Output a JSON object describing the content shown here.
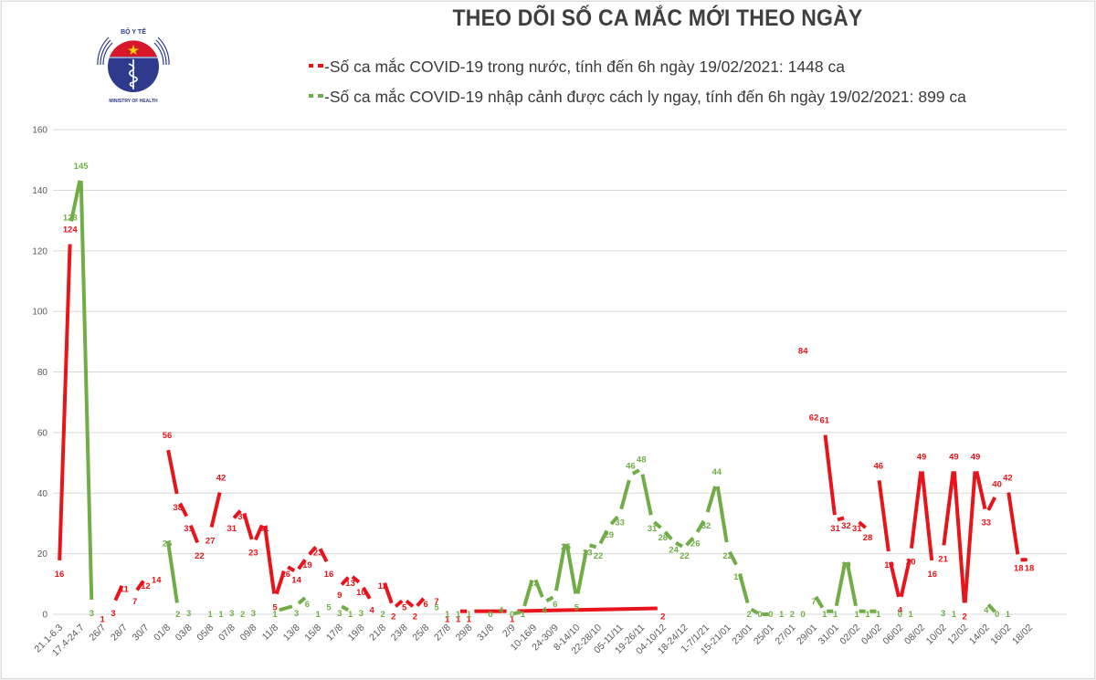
{
  "header": {
    "logo_top_text": "BỘ Y TẾ",
    "logo_bottom_text": "MINISTRY OF HEALTH",
    "title": "THEO DÕI SỐ CA MẮC MỚI THEO NGÀY"
  },
  "legend": {
    "domestic": "-Số ca mắc COVID-19 trong nước, tính đến 6h ngày 19/02/2021: 1448 ca",
    "imported": "-Số ca mắc COVID-19 nhập cảnh được cách ly ngay, tính đến 6h ngày 19/02/2021: 899 ca"
  },
  "colors": {
    "domestic": "#e8141b",
    "imported": "#70ad47",
    "grid": "#d9d9d9",
    "axis_text": "#595959"
  },
  "chart_data": {
    "type": "line",
    "title": "THEO DÕI SỐ CA MẮC MỚI THEO NGÀY",
    "xlabel": "",
    "ylabel": "",
    "ylim": [
      0,
      160
    ],
    "yticks": [
      0,
      20,
      40,
      60,
      80,
      100,
      120,
      140,
      160
    ],
    "grid": true,
    "legend_position": "top",
    "x_tick_labels": [
      "21.1-6.3",
      "17.4-24.7",
      "26/7",
      "28/7",
      "30/7",
      "01/8",
      "03/8",
      "05/8",
      "07/8",
      "09/8",
      "11/8",
      "13/8",
      "15/8",
      "17/8",
      "19/8",
      "21/8",
      "23/8",
      "25/8",
      "27/8",
      "29/8",
      "31/8",
      "2/9",
      "10-16/9",
      "24-30/9",
      "8-14/10",
      "22-28/10",
      "05-11/11",
      "19-26/11",
      "04-10/12",
      "18-24/12",
      "1-7/1/21",
      "15-21/01",
      "23/01",
      "25/01",
      "27/01",
      "29/01",
      "31/01",
      "02/02",
      "04/02",
      "06/02",
      "08/02",
      "10/02",
      "12/02",
      "14/02",
      "16/02",
      "18/02"
    ],
    "series": [
      {
        "name": "Số ca mắc COVID-19 trong nước, tính đến 6h ngày 19/02/2021: 1448 ca",
        "color": "#e8141b",
        "points": [
          [
            0,
            16
          ],
          [
            0.5,
            124
          ],
          [
            2,
            1
          ],
          [
            2.5,
            3
          ],
          [
            3,
            11
          ],
          [
            3.5,
            7
          ],
          [
            4,
            12
          ],
          [
            4.5,
            14
          ],
          [
            5,
            56
          ],
          [
            5.5,
            38
          ],
          [
            6,
            31
          ],
          [
            6.5,
            22
          ],
          [
            7,
            27
          ],
          [
            7.5,
            42
          ],
          [
            8,
            31
          ],
          [
            8.5,
            35
          ],
          [
            9,
            23
          ],
          [
            9.5,
            31
          ],
          [
            10,
            5
          ],
          [
            10.5,
            16
          ],
          [
            11,
            14
          ],
          [
            11.5,
            19
          ],
          [
            12,
            23
          ],
          [
            12.5,
            16
          ],
          [
            13,
            9
          ],
          [
            13.5,
            13
          ],
          [
            14,
            10
          ],
          [
            14.5,
            4
          ],
          [
            15,
            12
          ],
          [
            15.5,
            2
          ],
          [
            16,
            5
          ],
          [
            16.5,
            2
          ],
          [
            17,
            6
          ],
          [
            17.5,
            7
          ],
          [
            18,
            1
          ],
          [
            18.5,
            1
          ],
          [
            19,
            1
          ],
          [
            21,
            1
          ],
          [
            28,
            2
          ],
          [
            34.5,
            84
          ],
          [
            35,
            62
          ],
          [
            35.5,
            61
          ],
          [
            36,
            31
          ],
          [
            36.5,
            32
          ],
          [
            37,
            31
          ],
          [
            37.5,
            28
          ],
          [
            38,
            46
          ],
          [
            38.5,
            19
          ],
          [
            39,
            4
          ],
          [
            39.5,
            20
          ],
          [
            40,
            49
          ],
          [
            40.5,
            16
          ],
          [
            41,
            21
          ],
          [
            41.5,
            49
          ],
          [
            42,
            2
          ],
          [
            42.5,
            49
          ],
          [
            43,
            33
          ],
          [
            43.5,
            40
          ],
          [
            44,
            42
          ],
          [
            44.5,
            18
          ],
          [
            45,
            18
          ]
        ],
        "segments": [
          [
            0,
            1
          ],
          [
            3,
            4
          ],
          [
            5,
            6
          ],
          [
            8,
            9
          ],
          [
            9,
            10
          ],
          [
            10,
            11
          ],
          [
            12,
            13
          ],
          [
            14,
            15
          ],
          [
            15,
            16
          ],
          [
            16,
            17
          ],
          [
            17,
            18
          ],
          [
            18,
            19
          ],
          [
            19,
            20
          ],
          [
            20,
            21
          ],
          [
            21,
            22
          ],
          [
            22,
            23
          ],
          [
            24,
            25
          ],
          [
            25,
            26
          ],
          [
            26,
            27
          ],
          [
            28,
            29
          ],
          [
            29,
            30
          ],
          [
            30,
            31
          ],
          [
            31,
            32
          ],
          [
            35,
            36
          ],
          [
            36,
            37
          ],
          [
            37,
            38
          ],
          [
            41,
            42
          ],
          [
            42,
            43
          ],
          [
            44,
            45
          ],
          [
            46,
            47
          ],
          [
            47,
            48
          ],
          [
            48,
            49
          ],
          [
            49,
            50
          ],
          [
            50,
            51
          ],
          [
            52,
            53
          ],
          [
            53,
            54
          ],
          [
            54,
            55
          ],
          [
            55,
            56
          ],
          [
            56,
            57
          ],
          [
            58,
            59
          ],
          [
            59,
            60
          ],
          [
            61,
            62
          ]
        ]
      },
      {
        "name": "Số ca mắc COVID-19 nhập cảnh được cách ly ngay, tính đến 6h ngày 19/02/2021: 899 ca",
        "color": "#70ad47",
        "points": [
          [
            0.5,
            128
          ],
          [
            1,
            145
          ],
          [
            1.5,
            3
          ],
          [
            5,
            26
          ],
          [
            5.5,
            2
          ],
          [
            6,
            3
          ],
          [
            7,
            1
          ],
          [
            7.5,
            1
          ],
          [
            8,
            3
          ],
          [
            8.5,
            2
          ],
          [
            9,
            3
          ],
          [
            10,
            1
          ],
          [
            11,
            3
          ],
          [
            11.5,
            6
          ],
          [
            12,
            1
          ],
          [
            12.5,
            5
          ],
          [
            13,
            3
          ],
          [
            13.5,
            1
          ],
          [
            14,
            3
          ],
          [
            15,
            2
          ],
          [
            17.5,
            5
          ],
          [
            18,
            1
          ],
          [
            18.5,
            1
          ],
          [
            19,
            1
          ],
          [
            20,
            0
          ],
          [
            20.5,
            4
          ],
          [
            21,
            0
          ],
          [
            21.5,
            1
          ],
          [
            22,
            13
          ],
          [
            22.5,
            4
          ],
          [
            23,
            6
          ],
          [
            23.5,
            25
          ],
          [
            24,
            5
          ],
          [
            24.5,
            23
          ],
          [
            25,
            22
          ],
          [
            25.5,
            29
          ],
          [
            26,
            33
          ],
          [
            26.5,
            46
          ],
          [
            27,
            48
          ],
          [
            27.5,
            31
          ],
          [
            28,
            28
          ],
          [
            28.5,
            24
          ],
          [
            29,
            22
          ],
          [
            29.5,
            26
          ],
          [
            30,
            32
          ],
          [
            30.5,
            44
          ],
          [
            31,
            22
          ],
          [
            31.5,
            15
          ],
          [
            32,
            2
          ],
          [
            32.5,
            0
          ],
          [
            33,
            0
          ],
          [
            33.5,
            1
          ],
          [
            34,
            2
          ],
          [
            34.5,
            0
          ],
          [
            35,
            7
          ],
          [
            35.5,
            1
          ],
          [
            36,
            1
          ],
          [
            36.5,
            19
          ],
          [
            37,
            1
          ],
          [
            37.5,
            1
          ],
          [
            38,
            1
          ],
          [
            39,
            0
          ],
          [
            39.5,
            1
          ],
          [
            41,
            3
          ],
          [
            41.5,
            1
          ],
          [
            43,
            4
          ],
          [
            43.5,
            0
          ],
          [
            44,
            1
          ]
        ],
        "segments": [
          [
            0,
            1
          ],
          [
            1,
            2
          ],
          [
            3,
            4
          ],
          [
            11,
            12
          ],
          [
            12,
            13
          ],
          [
            16,
            17
          ],
          [
            26,
            27
          ],
          [
            27,
            28
          ],
          [
            28,
            29
          ],
          [
            29,
            30
          ],
          [
            30,
            31
          ],
          [
            31,
            32
          ],
          [
            32,
            33
          ],
          [
            33,
            34
          ],
          [
            34,
            35
          ],
          [
            35,
            36
          ],
          [
            36,
            37
          ],
          [
            37,
            38
          ],
          [
            38,
            39
          ],
          [
            39,
            40
          ],
          [
            40,
            41
          ],
          [
            41,
            42
          ],
          [
            42,
            43
          ],
          [
            43,
            44
          ],
          [
            44,
            45
          ],
          [
            45,
            46
          ],
          [
            46,
            47
          ],
          [
            47,
            48
          ],
          [
            48,
            49
          ],
          [
            49,
            50
          ],
          [
            54,
            55
          ],
          [
            55,
            56
          ],
          [
            56,
            57
          ],
          [
            57,
            58
          ],
          [
            58,
            59
          ],
          [
            59,
            60
          ],
          [
            65,
            66
          ]
        ]
      }
    ]
  }
}
